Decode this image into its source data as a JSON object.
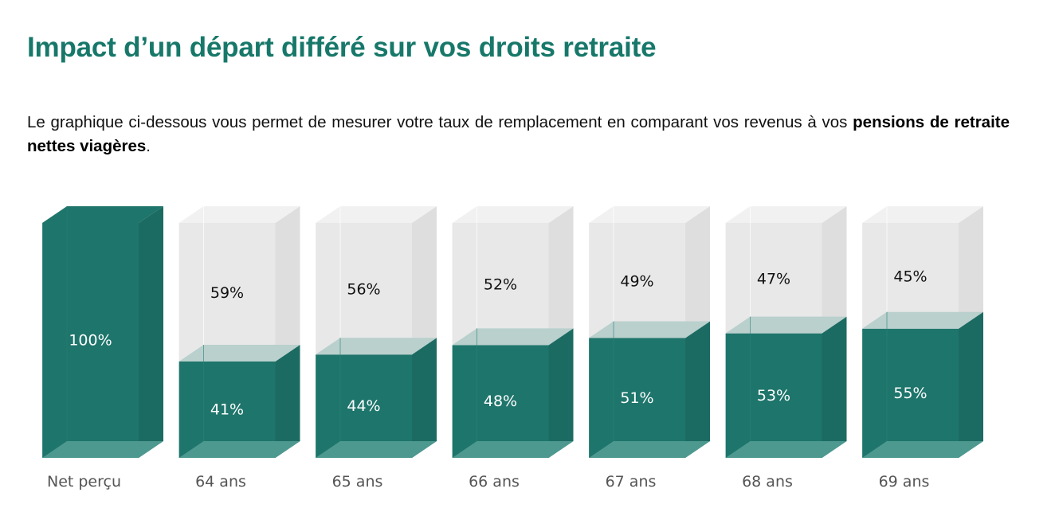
{
  "title": "Impact d’un départ différé sur vos droits retraite",
  "intro": {
    "text_before": "Le graphique ci-dessous vous permet de mesurer votre taux de remplacement en comparant vos revenus à vos ",
    "bold": "pensions de retraite nettes viagères",
    "text_after": "."
  },
  "chart_data": {
    "type": "bar",
    "stacked": true,
    "categories": [
      "Net perçu",
      "64 ans",
      "65 ans",
      "66 ans",
      "67 ans",
      "68 ans",
      "69 ans"
    ],
    "series": [
      {
        "values": [
          100,
          41,
          44,
          48,
          51,
          53,
          55
        ]
      },
      {
        "values": [
          0,
          59,
          56,
          52,
          49,
          47,
          45
        ]
      }
    ],
    "value_labels": {
      "filled": [
        "100%",
        "41%",
        "44%",
        "48%",
        "51%",
        "53%",
        "55%"
      ],
      "empty": [
        "",
        "59%",
        "56%",
        "52%",
        "49%",
        "47%",
        "45%"
      ]
    },
    "ylim": [
      0,
      100
    ],
    "grid": false,
    "legend": "none",
    "colors": {
      "filled_front": "#1e756b",
      "filled_side": "#1c6b62",
      "filled_top": "#b9d0cd",
      "filled_bottom": "#4d9990",
      "empty_front": "#e8e8e8",
      "empty_side": "#dedede",
      "empty_top": "#f1f1f1",
      "filled_label": "#ffffff",
      "empty_label": "#111111",
      "category_label": "#555555"
    }
  }
}
